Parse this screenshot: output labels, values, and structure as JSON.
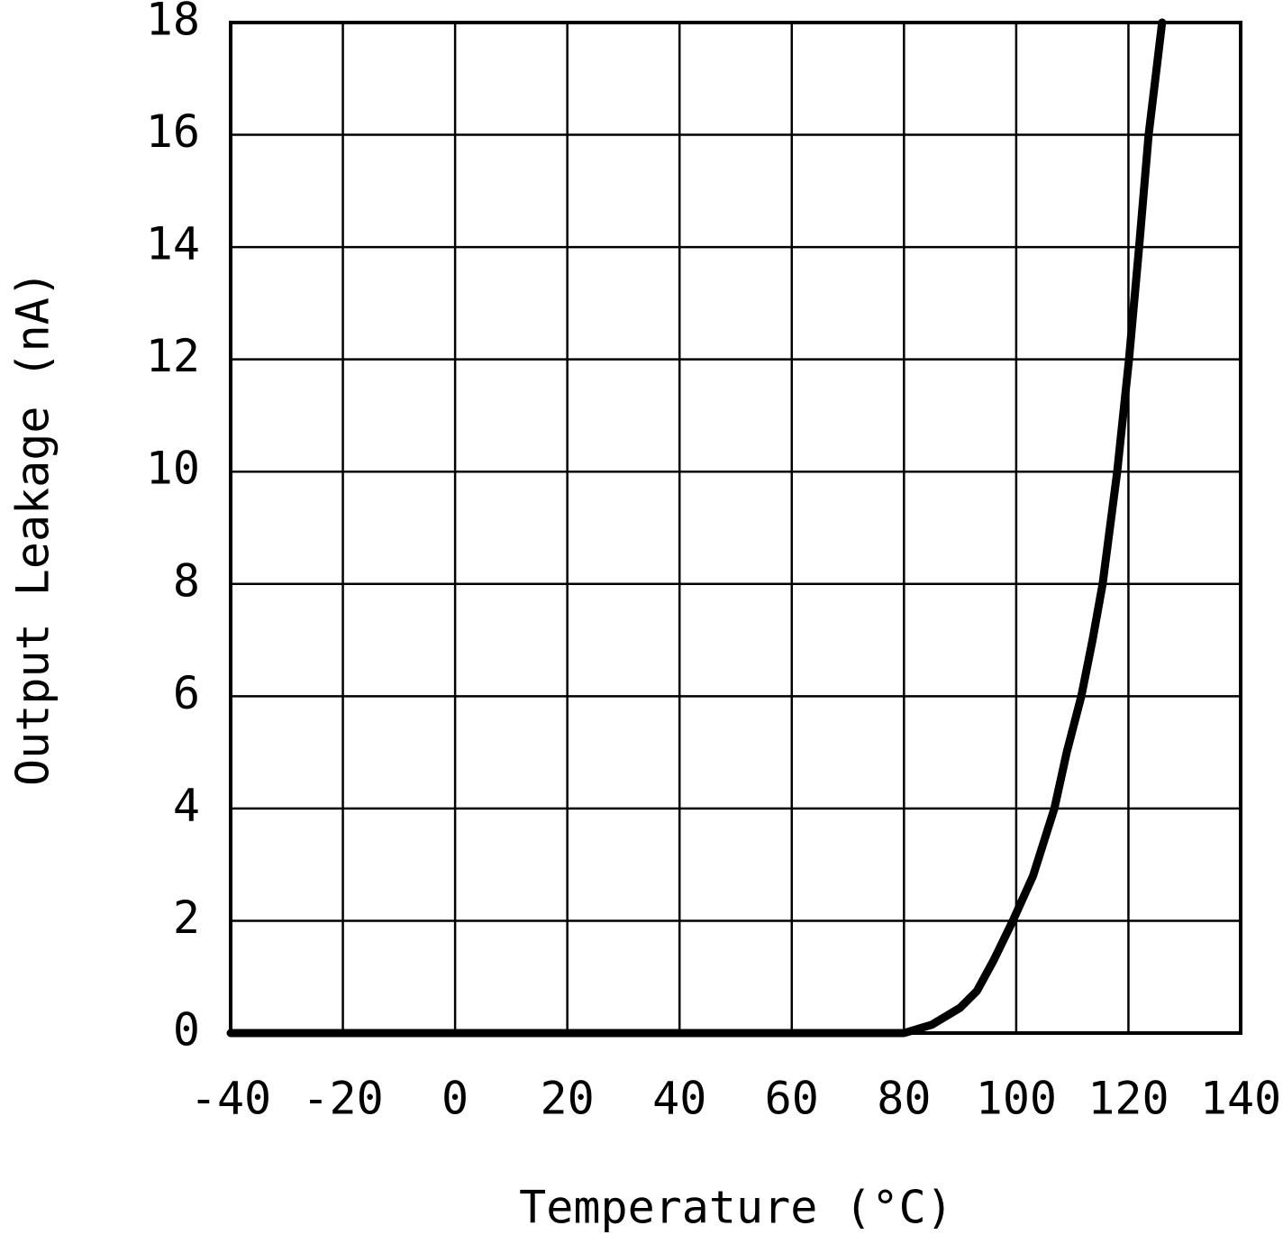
{
  "chart_data": {
    "type": "line",
    "x_label": "Temperature (°C)",
    "y_label": "Output Leakage (nA)",
    "x": [
      -40,
      80,
      85,
      90,
      93,
      96,
      99.4,
      103,
      106.8,
      109,
      111.6,
      113.6,
      115.4,
      118,
      120.1,
      121.9,
      123.6,
      126
    ],
    "series": [
      {
        "color": "#000000",
        "values": [
          0,
          0,
          0.15,
          0.45,
          0.75,
          1.3,
          2,
          2.8,
          4,
          5,
          6,
          7,
          8,
          10,
          12,
          14,
          16,
          18
        ]
      }
    ],
    "xlim": [
      -40,
      140
    ],
    "xticks": [
      -40,
      -20,
      0,
      20,
      40,
      60,
      80,
      100,
      120,
      140
    ],
    "ylim": [
      0,
      18
    ],
    "yticks": [
      0,
      2,
      4,
      6,
      8,
      10,
      12,
      14,
      16,
      18
    ],
    "grid": true
  }
}
